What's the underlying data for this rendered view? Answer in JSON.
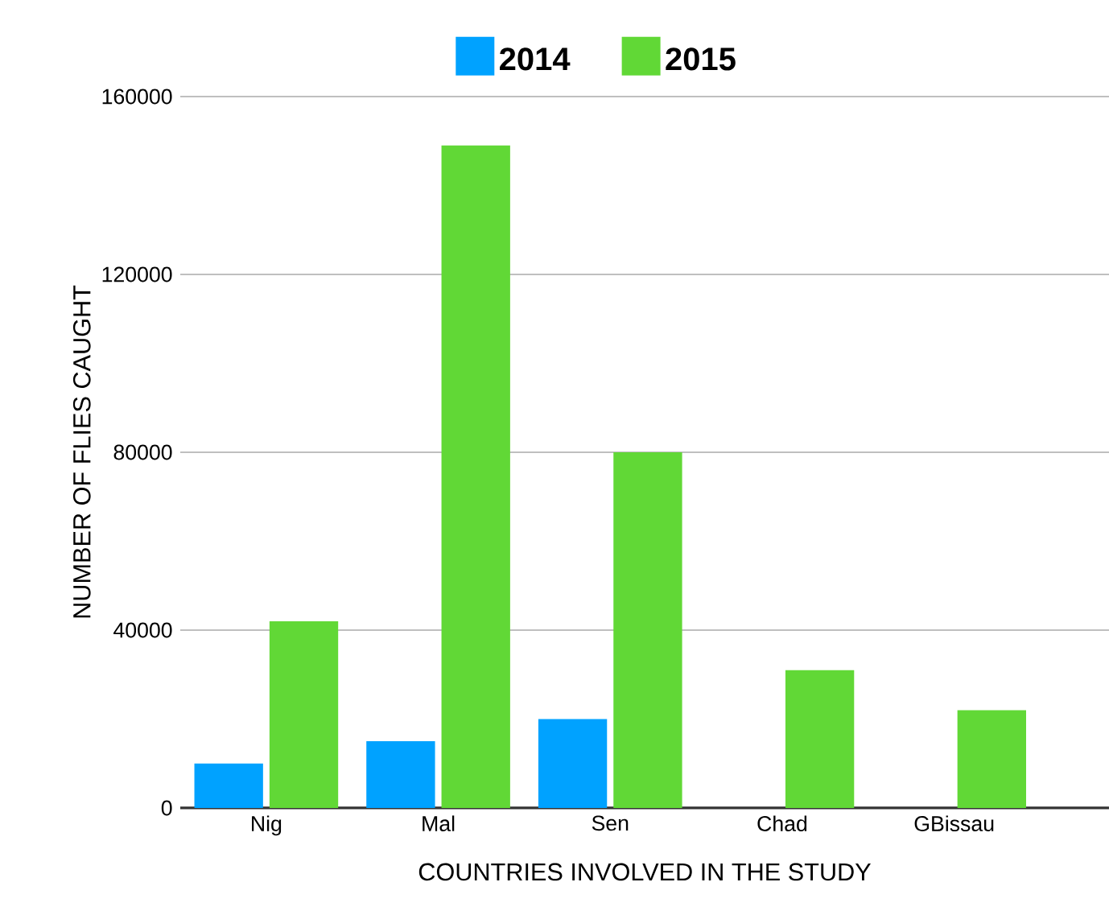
{
  "chart_data": {
    "type": "bar",
    "xlabel": "COUNTRIES INVOLVED IN THE STUDY",
    "ylabel": "NUMBER OF FLIES CAUGHT",
    "categories": [
      "Nig",
      "Mal",
      "Sen",
      "Chad",
      "GBissau"
    ],
    "series": [
      {
        "name": "2014",
        "color": "#00a2ff",
        "values": [
          10000,
          15000,
          20000,
          null,
          null
        ]
      },
      {
        "name": "2015",
        "color": "#61d836",
        "values": [
          42000,
          149000,
          80000,
          31000,
          22000
        ]
      }
    ],
    "ylim": [
      0,
      160000
    ],
    "yticks": [
      0,
      40000,
      80000,
      120000,
      160000
    ],
    "grid": "y",
    "legend": "top"
  }
}
